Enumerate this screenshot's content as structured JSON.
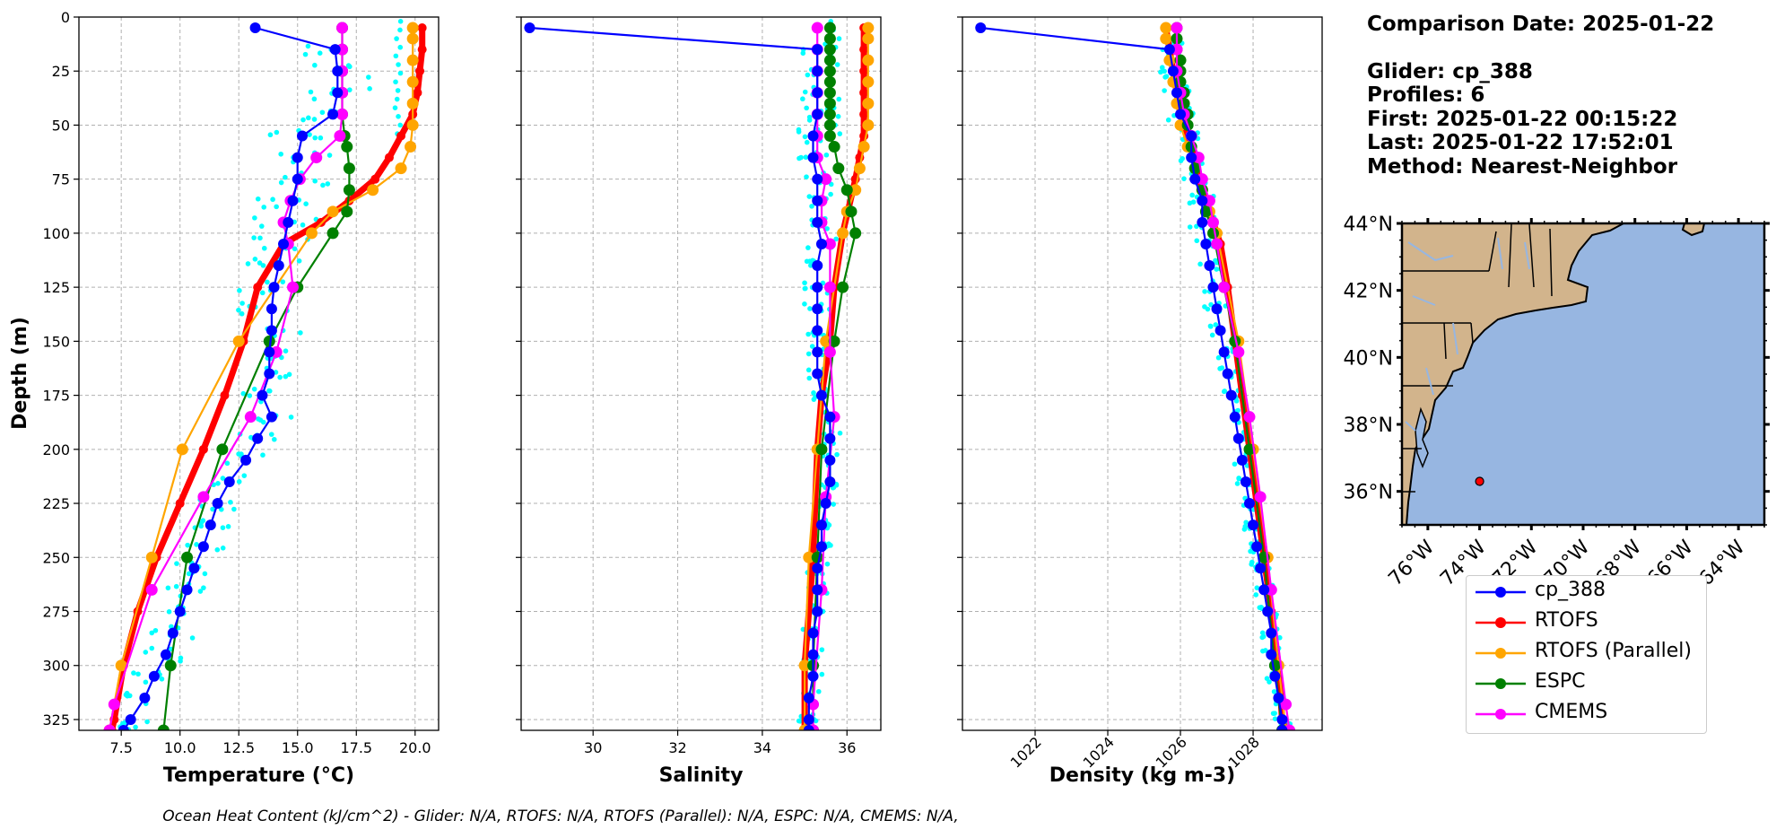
{
  "info": {
    "comparison_date": "Comparison Date: 2025-01-22",
    "glider": "Glider: cp_388",
    "profiles": "Profiles: 6",
    "first": "First: 2025-01-22 00:15:22",
    "last": "Last: 2025-01-22 17:52:01",
    "method": "Method: Nearest-Neighbor"
  },
  "footer": "Ocean Heat Content (kJ/cm^2) - Glider: N/A,  RTOFS: N/A,  RTOFS (Parallel): N/A,  ESPC: N/A,  CMEMS: N/A,",
  "legend": [
    {
      "label": "cp_388",
      "color": "#0000ff"
    },
    {
      "label": "RTOFS",
      "color": "#ff0000"
    },
    {
      "label": "RTOFS (Parallel)",
      "color": "#ffa500"
    },
    {
      "label": "ESPC",
      "color": "#008000"
    },
    {
      "label": "CMEMS",
      "color": "#ff00ff"
    }
  ],
  "colors": {
    "glider": "#0000ff",
    "rtofs": "#ff0000",
    "rtofs_parallel": "#ffa500",
    "espc": "#008000",
    "cmems": "#ff00ff",
    "raw_profiles": "#00ffff",
    "land": "#d2b48c",
    "ocean": "#97b6e1"
  },
  "chart_data": [
    {
      "type": "line",
      "xlabel": "Temperature ($^{o}C$)",
      "xlabel_display": "Temperature (°C)",
      "ylabel": "Depth (m)",
      "xlim": [
        5.7,
        21.0
      ],
      "ylim": [
        330,
        0
      ],
      "xticks": [
        "7.5",
        "10.0",
        "12.5",
        "15.0",
        "17.5",
        "20.0"
      ],
      "yticks": [
        "0",
        "25",
        "50",
        "75",
        "100",
        "125",
        "150",
        "175",
        "200",
        "225",
        "250",
        "275",
        "300",
        "325"
      ],
      "grid": true,
      "series": [
        {
          "name": "cp_388",
          "depth": [
            5,
            15,
            25,
            35,
            45,
            55,
            65,
            75,
            85,
            95,
            105,
            115,
            125,
            135,
            145,
            155,
            165,
            175,
            185,
            195,
            205,
            215,
            225,
            235,
            245,
            255,
            265,
            275,
            285,
            295,
            305,
            315,
            325,
            330
          ],
          "values": [
            13.2,
            16.6,
            16.7,
            16.7,
            16.5,
            15.2,
            15.0,
            15.0,
            14.8,
            14.6,
            14.4,
            14.2,
            14.0,
            13.9,
            13.9,
            13.8,
            13.8,
            13.5,
            13.9,
            13.3,
            12.8,
            12.1,
            11.6,
            11.3,
            11.0,
            10.6,
            10.3,
            10.0,
            9.7,
            9.4,
            8.9,
            8.5,
            7.9,
            7.6
          ]
        },
        {
          "name": "RTOFS",
          "depth": [
            5,
            15,
            25,
            35,
            45,
            55,
            65,
            75,
            85,
            95,
            105,
            125,
            150,
            175,
            200,
            225,
            250,
            275,
            300,
            325,
            330
          ],
          "values": [
            20.3,
            20.3,
            20.2,
            20.1,
            19.9,
            19.4,
            18.9,
            18.3,
            17.2,
            16.0,
            14.4,
            13.3,
            12.7,
            11.9,
            11.0,
            10.0,
            9.0,
            8.2,
            7.6,
            7.2,
            7.1
          ]
        },
        {
          "name": "RTOFS (Parallel)",
          "depth": [
            5,
            10,
            20,
            30,
            40,
            50,
            60,
            70,
            80,
            90,
            100,
            150,
            200,
            250,
            300,
            330
          ],
          "values": [
            19.9,
            19.9,
            19.9,
            19.9,
            19.9,
            19.9,
            19.8,
            19.4,
            18.2,
            16.5,
            15.6,
            12.5,
            10.1,
            8.8,
            7.5,
            7.0
          ]
        },
        {
          "name": "ESPC",
          "depth": [
            5,
            15,
            25,
            35,
            45,
            55,
            60,
            70,
            80,
            90,
            100,
            125,
            150,
            200,
            250,
            300,
            330
          ],
          "values": [
            16.9,
            16.9,
            16.9,
            16.9,
            16.9,
            17.0,
            17.1,
            17.2,
            17.2,
            17.1,
            16.5,
            15.0,
            13.8,
            11.8,
            10.3,
            9.6,
            9.3
          ]
        },
        {
          "name": "CMEMS",
          "depth": [
            5,
            15,
            25,
            35,
            45,
            55,
            65,
            75,
            85,
            95,
            105,
            125,
            155,
            185,
            222,
            265,
            318,
            330
          ],
          "values": [
            16.9,
            16.9,
            16.9,
            16.9,
            16.9,
            16.8,
            15.8,
            15.1,
            14.7,
            14.4,
            14.6,
            14.8,
            14.1,
            13.0,
            11.0,
            8.8,
            7.2,
            7.0
          ]
        }
      ]
    },
    {
      "type": "line",
      "xlabel": "Salinity",
      "xlim": [
        28.3,
        36.8
      ],
      "ylim": [
        330,
        0
      ],
      "xticks": [
        "30",
        "32",
        "34",
        "36"
      ],
      "grid": true,
      "series": [
        {
          "name": "cp_388",
          "depth": [
            5,
            15,
            25,
            35,
            45,
            55,
            65,
            75,
            85,
            95,
            105,
            115,
            125,
            135,
            145,
            155,
            165,
            175,
            185,
            195,
            205,
            215,
            225,
            235,
            245,
            255,
            265,
            275,
            285,
            295,
            305,
            315,
            325,
            330
          ],
          "values": [
            28.5,
            35.3,
            35.3,
            35.3,
            35.3,
            35.2,
            35.2,
            35.3,
            35.3,
            35.3,
            35.4,
            35.3,
            35.3,
            35.3,
            35.3,
            35.3,
            35.3,
            35.4,
            35.6,
            35.6,
            35.6,
            35.6,
            35.5,
            35.4,
            35.4,
            35.3,
            35.3,
            35.3,
            35.2,
            35.2,
            35.2,
            35.1,
            35.1,
            35.1
          ]
        },
        {
          "name": "RTOFS",
          "depth": [
            5,
            15,
            25,
            35,
            45,
            55,
            65,
            75,
            100,
            125,
            150,
            175,
            200,
            250,
            300,
            330
          ],
          "values": [
            36.4,
            36.4,
            36.4,
            36.4,
            36.4,
            36.4,
            36.3,
            36.2,
            35.9,
            35.7,
            35.6,
            35.4,
            35.3,
            35.2,
            35.0,
            35.0
          ]
        },
        {
          "name": "RTOFS (Parallel)",
          "depth": [
            5,
            10,
            20,
            30,
            40,
            50,
            60,
            70,
            80,
            90,
            100,
            150,
            200,
            250,
            300,
            330
          ],
          "values": [
            36.5,
            36.5,
            36.5,
            36.5,
            36.5,
            36.5,
            36.4,
            36.3,
            36.2,
            36.0,
            35.9,
            35.5,
            35.3,
            35.1,
            35.0,
            35.0
          ]
        },
        {
          "name": "ESPC",
          "depth": [
            5,
            10,
            15,
            20,
            25,
            30,
            35,
            40,
            45,
            50,
            55,
            60,
            70,
            80,
            90,
            100,
            125,
            150,
            200,
            250,
            300,
            330
          ],
          "values": [
            35.6,
            35.6,
            35.6,
            35.6,
            35.6,
            35.6,
            35.6,
            35.6,
            35.6,
            35.6,
            35.6,
            35.7,
            35.8,
            36.0,
            36.1,
            36.2,
            35.9,
            35.7,
            35.4,
            35.3,
            35.2,
            35.2
          ]
        },
        {
          "name": "CMEMS",
          "depth": [
            5,
            15,
            25,
            35,
            45,
            55,
            65,
            75,
            85,
            95,
            105,
            125,
            155,
            185,
            222,
            265,
            318,
            330
          ],
          "values": [
            35.3,
            35.3,
            35.3,
            35.3,
            35.3,
            35.3,
            35.3,
            35.5,
            35.4,
            35.4,
            35.6,
            35.6,
            35.6,
            35.7,
            35.5,
            35.4,
            35.2,
            35.2
          ]
        }
      ]
    },
    {
      "type": "line",
      "xlabel": "Density (kg m-3)",
      "xlim": [
        1020.0,
        1029.9
      ],
      "ylim": [
        330,
        0
      ],
      "xticks": [
        "1022",
        "1024",
        "1026",
        "1028"
      ],
      "grid": true,
      "series": [
        {
          "name": "cp_388",
          "depth": [
            5,
            15,
            25,
            35,
            45,
            55,
            65,
            75,
            85,
            95,
            105,
            115,
            125,
            135,
            145,
            155,
            165,
            175,
            185,
            195,
            205,
            215,
            225,
            235,
            245,
            255,
            265,
            275,
            285,
            295,
            305,
            315,
            325,
            330
          ],
          "values": [
            1020.5,
            1025.7,
            1025.8,
            1025.9,
            1026.0,
            1026.3,
            1026.3,
            1026.4,
            1026.6,
            1026.6,
            1026.7,
            1026.8,
            1026.9,
            1027.0,
            1027.1,
            1027.2,
            1027.3,
            1027.4,
            1027.5,
            1027.6,
            1027.7,
            1027.8,
            1027.9,
            1028.0,
            1028.1,
            1028.2,
            1028.3,
            1028.4,
            1028.5,
            1028.5,
            1028.6,
            1028.7,
            1028.8,
            1028.8
          ]
        },
        {
          "name": "RTOFS",
          "depth": [
            5,
            15,
            25,
            35,
            45,
            55,
            65,
            75,
            85,
            95,
            105,
            125,
            150,
            175,
            200,
            225,
            250,
            275,
            300,
            325,
            330
          ],
          "values": [
            1025.6,
            1025.7,
            1025.8,
            1025.9,
            1026.0,
            1026.2,
            1026.4,
            1026.5,
            1026.7,
            1026.9,
            1027.1,
            1027.3,
            1027.5,
            1027.7,
            1027.9,
            1028.1,
            1028.3,
            1028.5,
            1028.7,
            1028.8,
            1028.9
          ]
        },
        {
          "name": "RTOFS (Parallel)",
          "depth": [
            5,
            10,
            20,
            30,
            40,
            50,
            60,
            70,
            80,
            90,
            100,
            150,
            200,
            250,
            300,
            330
          ],
          "values": [
            1025.6,
            1025.6,
            1025.7,
            1025.8,
            1025.9,
            1026.0,
            1026.2,
            1026.4,
            1026.6,
            1026.8,
            1027.0,
            1027.6,
            1028.0,
            1028.4,
            1028.7,
            1028.9
          ]
        },
        {
          "name": "ESPC",
          "depth": [
            5,
            10,
            15,
            20,
            25,
            30,
            35,
            40,
            45,
            50,
            55,
            60,
            70,
            80,
            90,
            100,
            125,
            150,
            200,
            250,
            300,
            330
          ],
          "values": [
            1025.9,
            1025.9,
            1025.9,
            1026.0,
            1026.0,
            1026.0,
            1026.1,
            1026.1,
            1026.2,
            1026.2,
            1026.3,
            1026.3,
            1026.4,
            1026.6,
            1026.7,
            1026.9,
            1027.2,
            1027.5,
            1027.9,
            1028.3,
            1028.6,
            1028.8
          ]
        },
        {
          "name": "CMEMS",
          "depth": [
            5,
            15,
            25,
            35,
            45,
            55,
            65,
            75,
            85,
            95,
            105,
            125,
            155,
            185,
            222,
            265,
            318,
            330
          ],
          "values": [
            1025.9,
            1025.9,
            1025.9,
            1026.0,
            1026.1,
            1026.3,
            1026.5,
            1026.6,
            1026.8,
            1026.9,
            1027.0,
            1027.2,
            1027.6,
            1027.9,
            1028.2,
            1028.5,
            1028.9,
            1029.0
          ]
        }
      ]
    },
    {
      "type": "map",
      "lat_ticks": [
        "44°N",
        "42°N",
        "40°N",
        "38°N",
        "36°N"
      ],
      "lon_ticks": [
        "76°W",
        "74°W",
        "72°W",
        "70°W",
        "68°W",
        "66°W",
        "64°W"
      ],
      "lon_range": [
        -77,
        -63
      ],
      "lat_range": [
        35,
        44
      ],
      "glider_position": {
        "lon": -74.0,
        "lat": 36.3
      }
    }
  ]
}
